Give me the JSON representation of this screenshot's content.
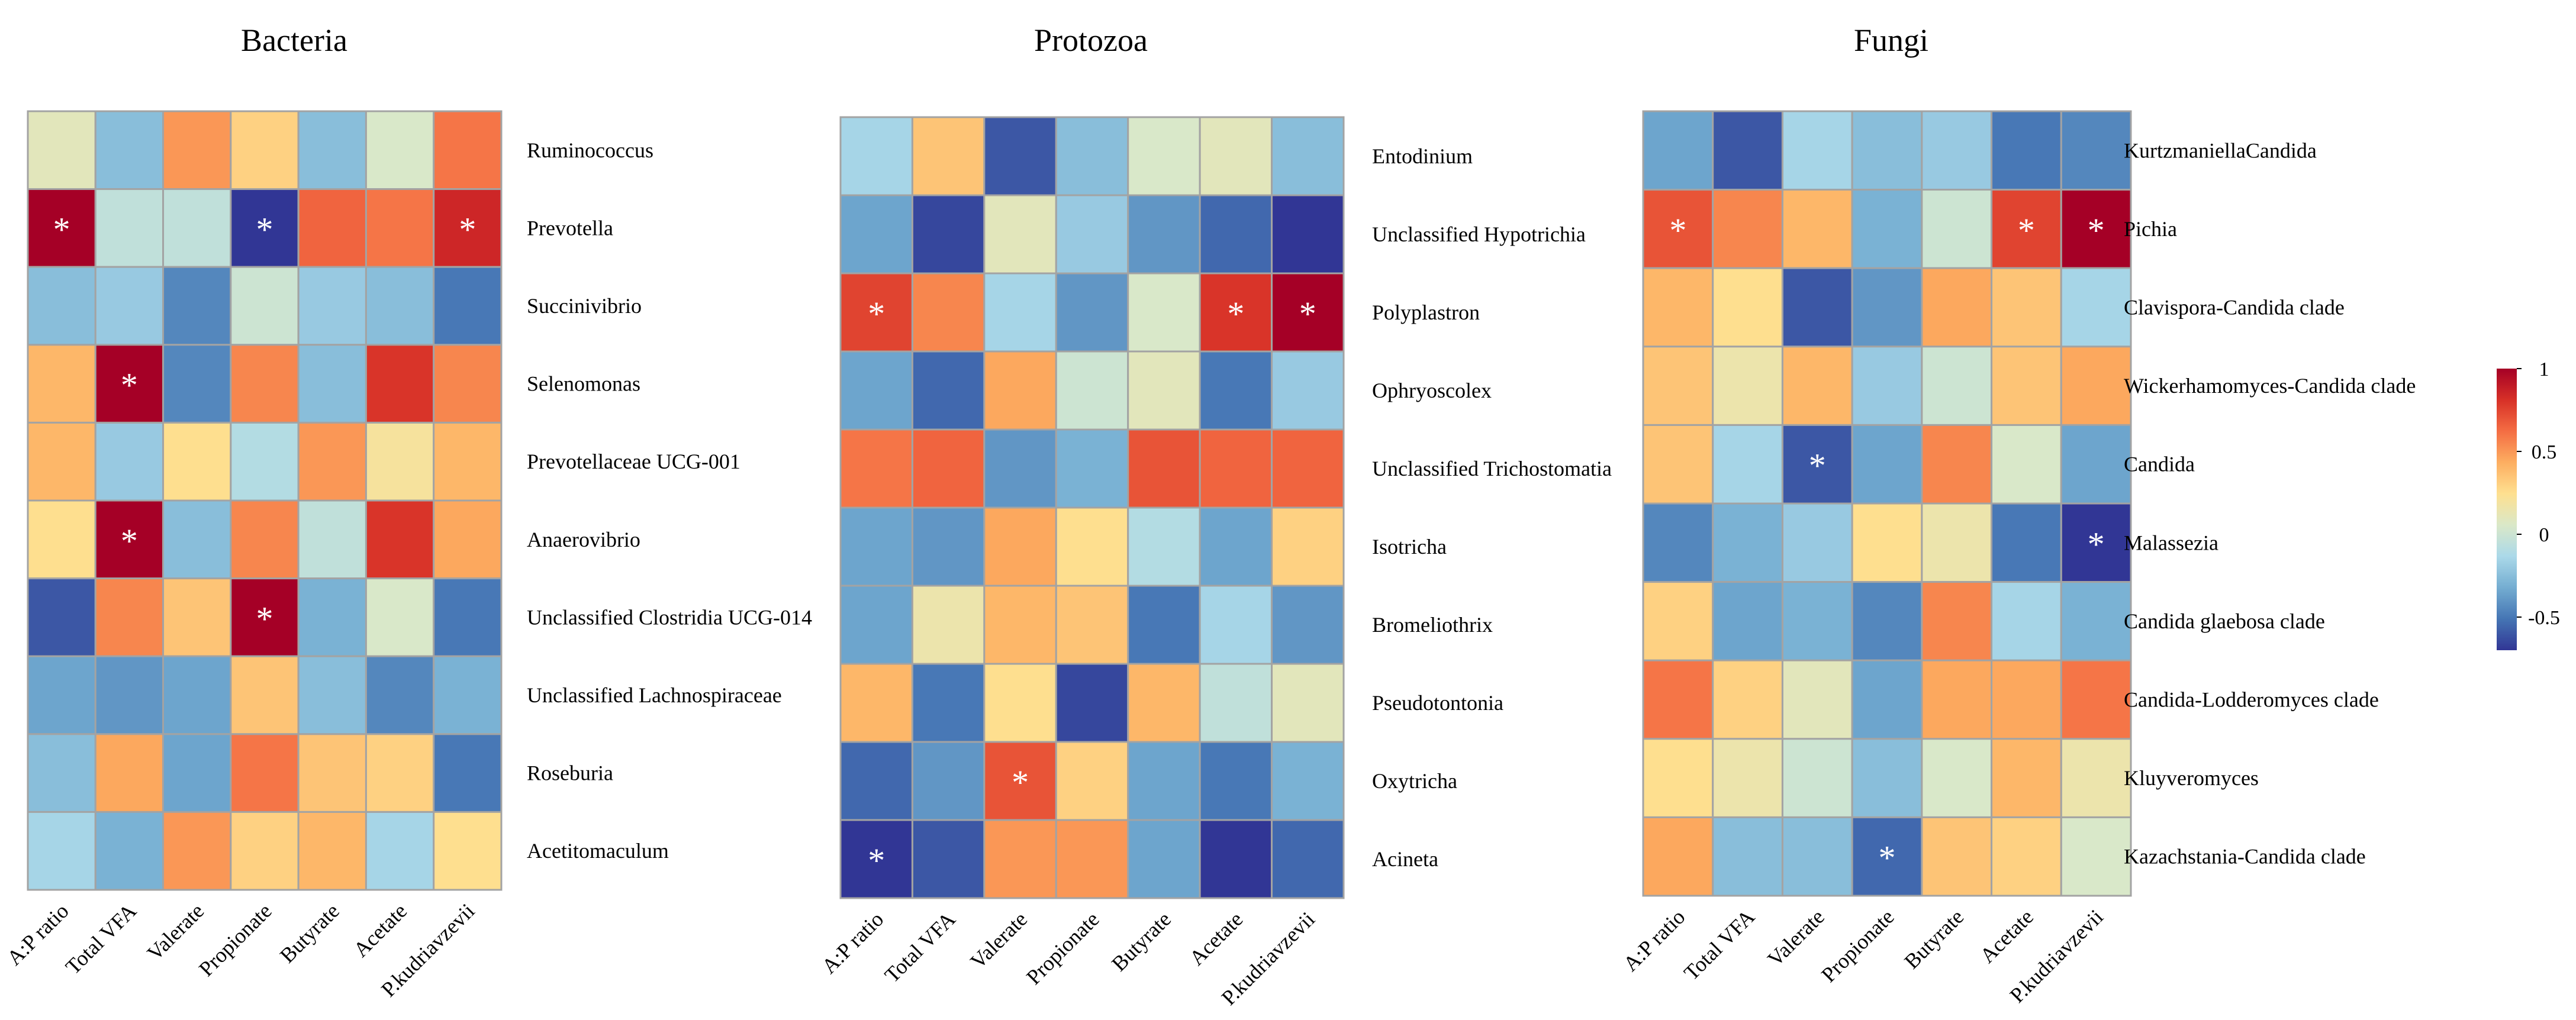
{
  "chart_data": {
    "type": "heatmap",
    "significance_marker": "*",
    "colorbar": {
      "ticks": [
        "1",
        "0.5",
        "0",
        "-0.5"
      ],
      "tick_values": [
        1,
        0.5,
        0,
        -0.5
      ],
      "range": [
        -0.7,
        1
      ],
      "colors": [
        "#313695",
        "#4575b4",
        "#74add1",
        "#abd9e9",
        "#dae8c8",
        "#fee090",
        "#fdae61",
        "#f46d43",
        "#d73027",
        "#a50026"
      ]
    },
    "columns": [
      "A:P ratio",
      "Total VFA",
      "Valerate",
      "Propionate",
      "Butyrate",
      "Acetate",
      "P.kudriavzevii"
    ],
    "panels": [
      {
        "title": "Bacteria",
        "rows": [
          "Ruminococcus",
          "Prevotella",
          "Succinivibrio",
          "Selenomonas",
          "Prevotellaceae UCG-001",
          "Anaerovibrio",
          "Unclassified Clostridia UCG-014",
          "Unclassified Lachnospiraceae",
          "Roseburia",
          "Acetitomaculum"
        ],
        "values": [
          [
            0.1,
            -0.25,
            0.5,
            0.3,
            -0.25,
            0.05,
            0.6
          ],
          [
            1.0,
            -0.05,
            -0.05,
            -0.75,
            0.65,
            0.6,
            0.85
          ],
          [
            -0.25,
            -0.2,
            -0.45,
            0.0,
            -0.2,
            -0.25,
            -0.5
          ],
          [
            0.4,
            1.0,
            -0.45,
            0.55,
            -0.25,
            0.8,
            0.55
          ],
          [
            0.4,
            -0.2,
            0.25,
            -0.1,
            0.5,
            0.2,
            0.4
          ],
          [
            0.25,
            1.0,
            -0.25,
            0.55,
            -0.05,
            0.8,
            0.45
          ],
          [
            -0.6,
            0.55,
            0.35,
            1.0,
            -0.3,
            0.05,
            -0.5
          ],
          [
            -0.35,
            -0.4,
            -0.35,
            0.35,
            -0.25,
            -0.45,
            -0.3
          ],
          [
            -0.25,
            0.45,
            -0.35,
            0.6,
            0.35,
            0.3,
            -0.5
          ],
          [
            -0.15,
            -0.3,
            0.5,
            0.3,
            0.4,
            -0.15,
            0.25
          ]
        ],
        "significant": [
          [
            1,
            0
          ],
          [
            1,
            3
          ],
          [
            1,
            6
          ],
          [
            3,
            1
          ],
          [
            5,
            1
          ],
          [
            6,
            3
          ]
        ]
      },
      {
        "title": "Protozoa",
        "rows": [
          "Entodinium",
          "Unclassified  Hypotrichia",
          "Polyplastron",
          "Ophryoscolex",
          "Unclassified  Trichostomatia",
          "Isotricha",
          "Bromeliothrix",
          "Pseudotontonia",
          "Oxytricha",
          "Acineta"
        ],
        "values": [
          [
            -0.15,
            0.35,
            -0.6,
            -0.25,
            0.05,
            0.1,
            -0.25
          ],
          [
            -0.35,
            -0.65,
            0.1,
            -0.2,
            -0.4,
            -0.55,
            -0.75
          ],
          [
            0.75,
            0.55,
            -0.15,
            -0.4,
            0.05,
            0.8,
            1.0
          ],
          [
            -0.35,
            -0.55,
            0.45,
            0.0,
            0.1,
            -0.5,
            -0.2
          ],
          [
            0.6,
            0.65,
            -0.4,
            -0.3,
            0.7,
            0.65,
            0.65
          ],
          [
            -0.35,
            -0.4,
            0.45,
            0.25,
            -0.1,
            -0.35,
            0.3
          ],
          [
            -0.35,
            0.15,
            0.4,
            0.35,
            -0.5,
            -0.15,
            -0.4
          ],
          [
            0.4,
            -0.5,
            0.25,
            -0.65,
            0.4,
            -0.05,
            0.1
          ],
          [
            -0.55,
            -0.4,
            0.7,
            0.3,
            -0.35,
            -0.5,
            -0.3
          ],
          [
            -0.75,
            -0.6,
            0.5,
            0.5,
            -0.35,
            -0.75,
            -0.55
          ]
        ],
        "significant": [
          [
            2,
            0
          ],
          [
            2,
            5
          ],
          [
            2,
            6
          ],
          [
            8,
            2
          ],
          [
            9,
            0
          ]
        ]
      },
      {
        "title": "Fungi",
        "rows": [
          "KurtzmaniellaCandida",
          "Pichia",
          "Clavispora-Candida clade",
          "Wickerhamomyces-Candida clade",
          "Candida",
          "Malassezia",
          "Candida glaebosa clade",
          "Candida-Lodderomyces clade",
          "Kluyveromyces",
          "Kazachstania-Candida clade"
        ],
        "values": [
          [
            -0.35,
            -0.6,
            -0.15,
            -0.25,
            -0.2,
            -0.5,
            -0.45
          ],
          [
            0.7,
            0.55,
            0.4,
            -0.3,
            0.0,
            0.75,
            1.0
          ],
          [
            0.4,
            0.25,
            -0.6,
            -0.4,
            0.45,
            0.35,
            -0.15
          ],
          [
            0.35,
            0.15,
            0.4,
            -0.2,
            0.0,
            0.35,
            0.45
          ],
          [
            0.35,
            -0.15,
            -0.6,
            -0.35,
            0.55,
            0.05,
            -0.35
          ],
          [
            -0.45,
            -0.3,
            -0.2,
            0.25,
            0.15,
            -0.5,
            -0.75
          ],
          [
            0.3,
            -0.35,
            -0.3,
            -0.45,
            0.55,
            -0.15,
            -0.3
          ],
          [
            0.6,
            0.3,
            0.1,
            -0.35,
            0.45,
            0.45,
            0.6
          ],
          [
            0.25,
            0.15,
            0.0,
            -0.25,
            0.05,
            0.4,
            0.15
          ],
          [
            0.45,
            -0.25,
            -0.25,
            -0.55,
            0.35,
            0.3,
            0.05
          ]
        ],
        "significant": [
          [
            1,
            0
          ],
          [
            1,
            5
          ],
          [
            1,
            6
          ],
          [
            4,
            2
          ],
          [
            5,
            6
          ],
          [
            9,
            3
          ]
        ]
      }
    ]
  }
}
